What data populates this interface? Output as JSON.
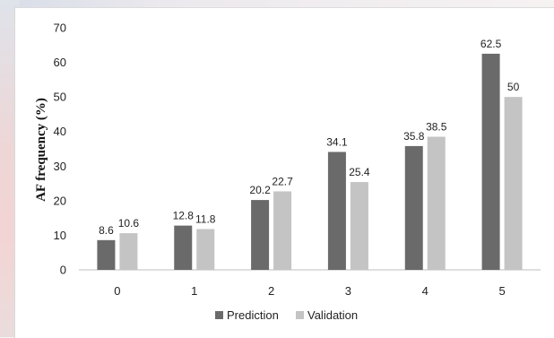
{
  "chart_data": {
    "type": "bar",
    "title": "",
    "xlabel": "",
    "ylabel": "AF frequency (%)",
    "categories": [
      "0",
      "1",
      "2",
      "3",
      "4",
      "5"
    ],
    "ylim": [
      0,
      70
    ],
    "yticks": [
      0,
      10,
      20,
      30,
      40,
      50,
      60,
      70
    ],
    "grid": false,
    "legend_position": "bottom",
    "series": [
      {
        "name": "Prediction",
        "color": "#6a6a6a",
        "values": [
          8.6,
          12.8,
          20.2,
          34.1,
          35.8,
          62.5
        ]
      },
      {
        "name": "Validation",
        "color": "#c4c4c4",
        "values": [
          10.6,
          11.8,
          22.7,
          25.4,
          38.5,
          50
        ]
      }
    ]
  }
}
